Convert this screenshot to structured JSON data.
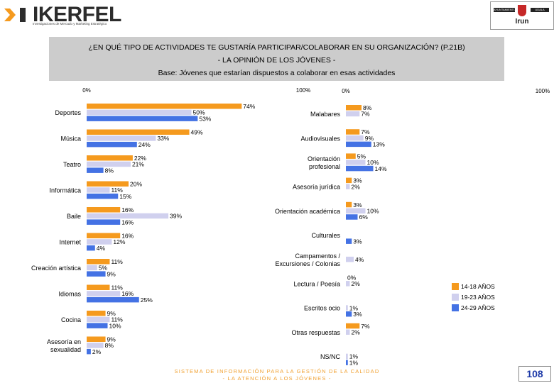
{
  "header": {
    "brand": "IKERFEL",
    "brand_sub": "Investigaciones de Mercado y Marketing Estratégico",
    "client": "Irun",
    "client_tag_left": "AYUNTAMIENTO",
    "client_tag_right": "UDALA"
  },
  "title": {
    "line1": "¿EN QUÉ TIPO DE ACTIVIDADES TE GUSTARÍA PARTICIPAR/COLABORAR EN SU ORGANIZACIÓN? (P.21B)",
    "line2": "- LA OPINIÓN DE LOS JÓVENES -",
    "line3": "Base:  Jóvenes que estarían dispuestos a colaborar en esas actividades"
  },
  "colors": {
    "s1": "#f59a1e",
    "s2": "#d0d0ee",
    "s3": "#4472e4"
  },
  "chart_data": [
    {
      "type": "bar",
      "orientation": "horizontal",
      "axis_min_label": "0%",
      "axis_max_label": "100%",
      "xlim": [
        0,
        100
      ],
      "series_names": [
        "14-18 AÑOS",
        "19-23 AÑOS",
        "24-29 AÑOS"
      ],
      "categories": [
        {
          "label": [
            "Deportes"
          ],
          "values": [
            74,
            50,
            53
          ]
        },
        {
          "label": [
            "Música"
          ],
          "values": [
            49,
            33,
            24
          ]
        },
        {
          "label": [
            "Teatro"
          ],
          "values": [
            22,
            21,
            8
          ]
        },
        {
          "label": [
            "Informática"
          ],
          "values": [
            20,
            11,
            15
          ]
        },
        {
          "label": [
            "Baile"
          ],
          "values": [
            16,
            39,
            16
          ]
        },
        {
          "label": [
            "Internet"
          ],
          "values": [
            16,
            12,
            4
          ]
        },
        {
          "label": [
            "Creación artística"
          ],
          "values": [
            11,
            5,
            9
          ]
        },
        {
          "label": [
            "Idiomas"
          ],
          "values": [
            11,
            16,
            25
          ]
        },
        {
          "label": [
            "Cocina"
          ],
          "values": [
            9,
            11,
            10
          ]
        },
        {
          "label": [
            "Asesoría en",
            "sexualidad"
          ],
          "values": [
            9,
            8,
            2
          ]
        }
      ]
    },
    {
      "type": "bar",
      "orientation": "horizontal",
      "axis_min_label": "0%",
      "axis_max_label": "100%",
      "xlim": [
        0,
        100
      ],
      "series_names": [
        "14-18 AÑOS",
        "19-23 AÑOS",
        "24-29 AÑOS"
      ],
      "categories": [
        {
          "label": [
            "Malabares"
          ],
          "values": [
            8,
            7,
            null
          ]
        },
        {
          "label": [
            "Audiovisuales"
          ],
          "values": [
            7,
            9,
            13
          ]
        },
        {
          "label": [
            "Orientación",
            "profesional"
          ],
          "values": [
            5,
            10,
            14
          ]
        },
        {
          "label": [
            "Asesoría jurídica"
          ],
          "values": [
            3,
            2,
            null
          ]
        },
        {
          "label": [
            "Orientación académica"
          ],
          "values": [
            3,
            10,
            6
          ]
        },
        {
          "label": [
            "Culturales"
          ],
          "values": [
            null,
            null,
            3
          ]
        },
        {
          "label": [
            "Campamentos /",
            "Excursiones / Colonias"
          ],
          "values": [
            null,
            4,
            null
          ]
        },
        {
          "label": [
            "Lectura / Poesía"
          ],
          "values": [
            0,
            2,
            null
          ]
        },
        {
          "label": [
            "Escritos ocio"
          ],
          "values": [
            null,
            1,
            3
          ]
        },
        {
          "label": [
            "Otras respuestas"
          ],
          "values": [
            7,
            2,
            null
          ]
        },
        {
          "label": [
            "NS/NC"
          ],
          "values": [
            null,
            1,
            1
          ]
        }
      ]
    }
  ],
  "footer": {
    "line1": "SISTEMA DE INFORMACIÓN PARA LA GESTIÓN DE LA CALIDAD",
    "line2": "- LA ATENCIÓN A LOS JÓVENES -",
    "page": "108"
  }
}
